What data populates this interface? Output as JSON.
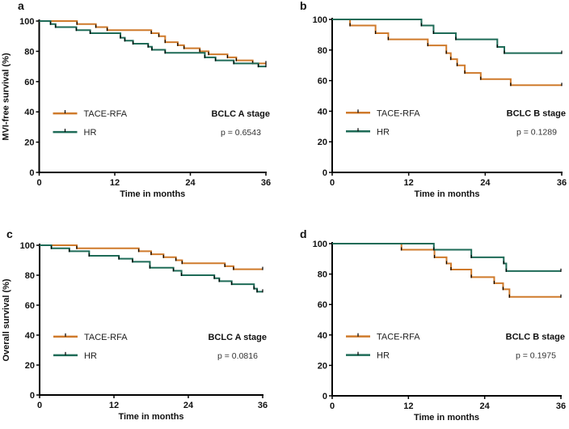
{
  "colors": {
    "TACE-RFA": "#cf7a2b",
    "HR": "#1e6b57"
  },
  "chart_data": [
    {
      "panel": "a",
      "type": "line",
      "ylabel": "MVI-free survival (%)",
      "xlabel": "Time in months",
      "xlim": [
        0,
        36
      ],
      "ylim": [
        0,
        100
      ],
      "xticks": [
        0,
        12,
        24,
        36
      ],
      "yticks": [
        0,
        20,
        40,
        60,
        80,
        100
      ],
      "stage": "BCLC A stage",
      "p_value": "p = 0.6543",
      "legend_placement": "middle-left",
      "series": [
        {
          "name": "TACE-RFA",
          "steps": [
            [
              0,
              100
            ],
            [
              6,
              98
            ],
            [
              9,
              96
            ],
            [
              10.8,
              94
            ],
            [
              17.8,
              92
            ],
            [
              19,
              90
            ],
            [
              20,
              86
            ],
            [
              22,
              84
            ],
            [
              23,
              82
            ],
            [
              25.5,
              80
            ],
            [
              26.9,
              78
            ],
            [
              29.9,
              76
            ],
            [
              31.3,
              74
            ],
            [
              33.9,
              72
            ],
            [
              36,
              72
            ]
          ]
        },
        {
          "name": "HR",
          "steps": [
            [
              0,
              100
            ],
            [
              1.8,
              98
            ],
            [
              2.6,
              96
            ],
            [
              5.9,
              94
            ],
            [
              8.1,
              92
            ],
            [
              12.9,
              89
            ],
            [
              13.6,
              87
            ],
            [
              14.9,
              85
            ],
            [
              17.3,
              83
            ],
            [
              17.9,
              81
            ],
            [
              20,
              79
            ],
            [
              26.3,
              76
            ],
            [
              28,
              74
            ],
            [
              30.9,
              72
            ],
            [
              34.8,
              70
            ],
            [
              36,
              70
            ]
          ]
        }
      ]
    },
    {
      "panel": "b",
      "type": "line",
      "ylabel": "",
      "xlabel": "Time in months",
      "xlim": [
        0,
        36
      ],
      "ylim": [
        0,
        100
      ],
      "xticks": [
        0,
        12,
        24,
        36
      ],
      "yticks": [
        0,
        20,
        40,
        60,
        80,
        100
      ],
      "stage": "BCLC B stage",
      "p_value": "p = 0.1289",
      "legend_placement": "middle-left",
      "series": [
        {
          "name": "TACE-RFA",
          "steps": [
            [
              0,
              100
            ],
            [
              2.8,
              96
            ],
            [
              6.8,
              91
            ],
            [
              8.8,
              87
            ],
            [
              15,
              83
            ],
            [
              17.9,
              78
            ],
            [
              18.6,
              74
            ],
            [
              19.6,
              70
            ],
            [
              20.8,
              65
            ],
            [
              23.3,
              61
            ],
            [
              28,
              57
            ],
            [
              36,
              57
            ]
          ]
        },
        {
          "name": "HR",
          "steps": [
            [
              0,
              100
            ],
            [
              14,
              96
            ],
            [
              15.9,
              91
            ],
            [
              19.4,
              87
            ],
            [
              25.9,
              82
            ],
            [
              27,
              78
            ],
            [
              36,
              78
            ]
          ]
        }
      ]
    },
    {
      "panel": "c",
      "type": "line",
      "ylabel": "Overall survival (%)",
      "xlabel": "Time in months",
      "xlim": [
        0,
        36
      ],
      "ylim": [
        0,
        100
      ],
      "xticks": [
        0,
        12,
        24,
        36
      ],
      "yticks": [
        0,
        20,
        40,
        60,
        80,
        100
      ],
      "stage": "BCLC A stage",
      "p_value": "p = 0.0816",
      "legend_placement": "middle-left",
      "series": [
        {
          "name": "TACE-RFA",
          "steps": [
            [
              0,
              100
            ],
            [
              6,
              98
            ],
            [
              16,
              96
            ],
            [
              18,
              94
            ],
            [
              20,
              92
            ],
            [
              22,
              90
            ],
            [
              23,
              88
            ],
            [
              29.9,
              86
            ],
            [
              31.3,
              84
            ],
            [
              36,
              84
            ]
          ]
        },
        {
          "name": "HR",
          "steps": [
            [
              0,
              100
            ],
            [
              1.9,
              98
            ],
            [
              4.8,
              96
            ],
            [
              8,
              93
            ],
            [
              12.8,
              91
            ],
            [
              15,
              89
            ],
            [
              17.8,
              85
            ],
            [
              21.6,
              83
            ],
            [
              22.9,
              80
            ],
            [
              28.2,
              78
            ],
            [
              29,
              76
            ],
            [
              31,
              74
            ],
            [
              34.6,
              71
            ],
            [
              35.1,
              69
            ],
            [
              36,
              69
            ]
          ]
        }
      ]
    },
    {
      "panel": "d",
      "type": "line",
      "ylabel": "",
      "xlabel": "Time in months",
      "xlim": [
        0,
        36
      ],
      "ylim": [
        0,
        100
      ],
      "xticks": [
        0,
        12,
        24,
        36
      ],
      "yticks": [
        0,
        20,
        40,
        60,
        80,
        100
      ],
      "stage": "BCLC B stage",
      "p_value": "p = 0.1975",
      "legend_placement": "middle-left",
      "series": [
        {
          "name": "TACE-RFA",
          "steps": [
            [
              0,
              100
            ],
            [
              10.9,
              96
            ],
            [
              16.1,
              91
            ],
            [
              18,
              87
            ],
            [
              18.7,
              83
            ],
            [
              21.9,
              78
            ],
            [
              25.5,
              74
            ],
            [
              26.9,
              70
            ],
            [
              27.9,
              65
            ],
            [
              36,
              65
            ]
          ]
        },
        {
          "name": "HR",
          "steps": [
            [
              0,
              100
            ],
            [
              16,
              96
            ],
            [
              21.9,
              91
            ],
            [
              27,
              87
            ],
            [
              27.4,
              82
            ],
            [
              36,
              82
            ]
          ]
        }
      ]
    }
  ]
}
